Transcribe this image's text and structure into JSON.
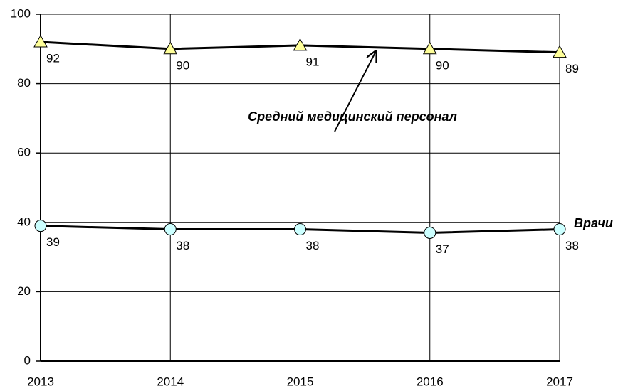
{
  "chart_data": {
    "type": "line",
    "categories": [
      "2013",
      "2014",
      "2015",
      "2016",
      "2017"
    ],
    "series": [
      {
        "name": "Средний медицинский персонал",
        "color": "#ffff99",
        "marker": "triangle",
        "values": [
          92,
          90,
          91,
          90,
          89
        ]
      },
      {
        "name": "Врачи",
        "color": "#ccffff",
        "marker": "circle",
        "values": [
          39,
          38,
          38,
          37,
          38
        ]
      }
    ],
    "ylim": [
      0,
      100
    ],
    "yticks": [
      0,
      20,
      40,
      60,
      80,
      100
    ],
    "grid": true
  }
}
